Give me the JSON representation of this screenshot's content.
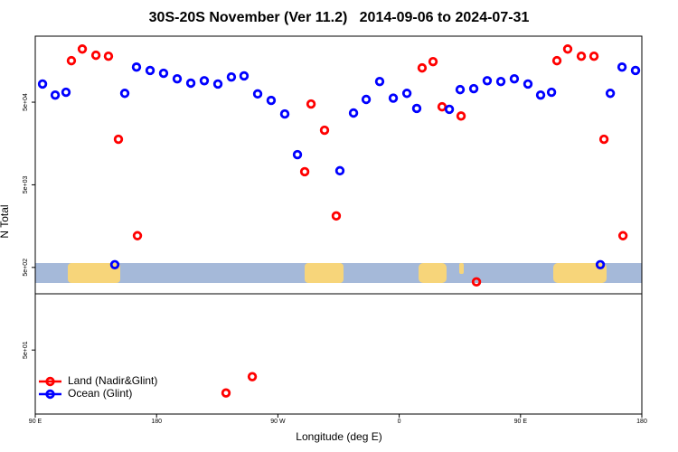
{
  "chart_data": {
    "type": "scatter",
    "title": "30S-20S November (Ver 11.2)   2014-09-06 to 2024-07-31",
    "x_label": "Longitude (deg E)",
    "y_label": "N Total",
    "log_y": true,
    "legend": "bottom-left",
    "xlim": [
      90,
      540
    ],
    "xticks": [
      {
        "value": 90,
        "label": "90 E"
      },
      180,
      {
        "value": 270,
        "label": "90 W"
      },
      {
        "value": 360,
        "label": "0"
      },
      {
        "value": 450,
        "label": "90 E"
      },
      {
        "value": 540,
        "label": "180"
      }
    ],
    "ylim": [
      8.4,
      315000
    ],
    "yticks": [
      {
        "value": 50,
        "label": "5e+01"
      },
      {
        "value": 500,
        "label": "5e+02"
      },
      {
        "value": 5000,
        "label": "5e+03"
      },
      {
        "value": 50000,
        "label": "5e+04"
      }
    ],
    "series": [
      {
        "name": "Land (Nadir&Glint)",
        "color": "#ff0000",
        "x": [
          116.8,
          124.9,
          135,
          144.3,
          151.7,
          165.8,
          231.5,
          251,
          289.9,
          294.6,
          304.6,
          313.3,
          377,
          385.1,
          391.8,
          405.9,
          417.3,
          477,
          485,
          495.1,
          504.5,
          511.9,
          526
        ],
        "values": [
          159000,
          220000,
          185000,
          180000,
          17800,
          1210,
          15.1,
          23.8,
          7200,
          47500,
          22900,
          2100,
          130000,
          155000,
          44000,
          34000,
          334,
          159000,
          220000,
          180000,
          180000,
          17800,
          1210
        ]
      },
      {
        "name": "Ocean (Glint)",
        "color": "#0000ff",
        "x": [
          95.4,
          104.8,
          112.8,
          149,
          156.4,
          165.1,
          175.2,
          185.2,
          195.3,
          205.4,
          215.4,
          225.5,
          235.5,
          244.9,
          255,
          265,
          275.1,
          284.5,
          316,
          326.1,
          335.5,
          345.5,
          355.6,
          365.7,
          373,
          397.2,
          405.2,
          415.3,
          425.3,
          435.4,
          445.4,
          455.5,
          464.9,
          473,
          509.2,
          516.6,
          525.3,
          535.3
        ],
        "values": [
          83000,
          61000,
          66000,
          540,
          64000,
          133000,
          121000,
          112000,
          96000,
          85000,
          91000,
          83000,
          101000,
          104000,
          63000,
          52500,
          36000,
          11600,
          7400,
          37000,
          54000,
          89000,
          56000,
          64000,
          42000,
          41000,
          71000,
          73000,
          91000,
          89000,
          96000,
          83000,
          61000,
          66000,
          540,
          64000,
          133000,
          121000
        ]
      }
    ]
  }
}
